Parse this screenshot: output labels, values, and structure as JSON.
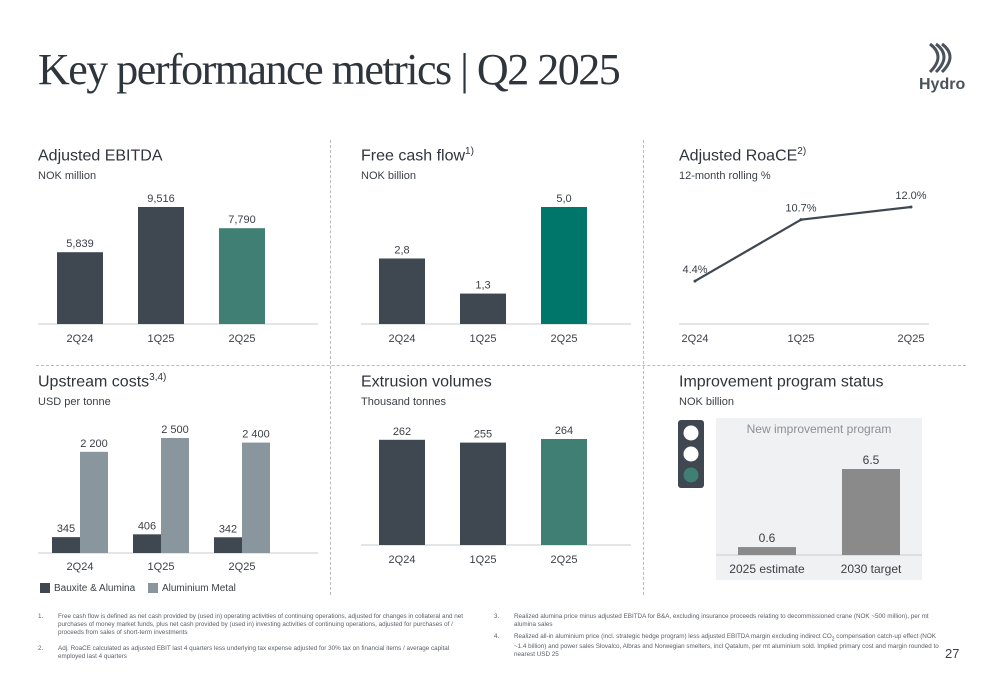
{
  "header": {
    "title": "Key performance metrics | Q2 2025",
    "logo_text": "Hydro"
  },
  "panels": {
    "ebitda": {
      "title": "Adjusted EBITDA",
      "sup": "",
      "subtitle": "NOK million"
    },
    "fcf": {
      "title": "Free cash flow",
      "sup": "1)",
      "subtitle": "NOK billion"
    },
    "roace": {
      "title": "Adjusted RoaCE",
      "sup": "2)",
      "subtitle": "12-month rolling %"
    },
    "upstream": {
      "title": "Upstream costs",
      "sup": "3,4)",
      "subtitle": "USD per tonne"
    },
    "extrusion": {
      "title": "Extrusion volumes",
      "sup": "",
      "subtitle": "Thousand tonnes"
    },
    "improvement": {
      "title": "Improvement program status",
      "sup": "",
      "subtitle": "NOK billion",
      "inner_label": "New improvement program"
    }
  },
  "chart_data": [
    {
      "id": "ebitda",
      "type": "bar",
      "categories": [
        "2Q24",
        "1Q25",
        "2Q25"
      ],
      "values": [
        5839,
        9516,
        7790
      ],
      "labels": [
        "5,839",
        "9,516",
        "7,790"
      ],
      "ylim": [
        0,
        9516
      ],
      "colors": [
        "#3f4750",
        "#3f4750",
        "#3f7f74"
      ]
    },
    {
      "id": "fcf",
      "type": "bar",
      "categories": [
        "2Q24",
        "1Q25",
        "2Q25"
      ],
      "values": [
        2.8,
        1.3,
        5.0
      ],
      "labels": [
        "2,8",
        "1,3",
        "5,0"
      ],
      "ylim": [
        0,
        5.0
      ],
      "colors": [
        "#3f4750",
        "#3f4750",
        "#00756a"
      ]
    },
    {
      "id": "roace",
      "type": "line",
      "categories": [
        "2Q24",
        "1Q25",
        "2Q25"
      ],
      "values": [
        4.4,
        10.7,
        12.0
      ],
      "labels": [
        "4.4%",
        "10.7%",
        "12.0%"
      ],
      "ylim": [
        0,
        12.0
      ],
      "colors": [
        "#3f4750"
      ]
    },
    {
      "id": "upstream",
      "type": "bar",
      "categories": [
        "2Q24",
        "1Q25",
        "2Q25"
      ],
      "series": [
        {
          "name": "Bauxite & Alumina",
          "values": [
            345,
            406,
            342
          ],
          "labels": [
            "345",
            "406",
            "342"
          ],
          "color": "#3f4750"
        },
        {
          "name": "Aluminium Metal",
          "values": [
            2200,
            2500,
            2400
          ],
          "labels": [
            "2 200",
            "2 500",
            "2 400"
          ],
          "color": "#8a969d"
        }
      ],
      "ylim": [
        0,
        2500
      ]
    },
    {
      "id": "extrusion",
      "type": "bar",
      "categories": [
        "2Q24",
        "1Q25",
        "2Q25"
      ],
      "values": [
        262,
        255,
        264
      ],
      "labels": [
        "262",
        "255",
        "264"
      ],
      "ylim": [
        0,
        264
      ],
      "colors": [
        "#3f4750",
        "#3f4750",
        "#3f7f74"
      ]
    },
    {
      "id": "improvement",
      "type": "bar",
      "categories": [
        "2025  estimate",
        "2030  target"
      ],
      "values": [
        0.6,
        6.5
      ],
      "labels": [
        "0.6",
        "6.5"
      ],
      "ylim": [
        0,
        6.5
      ],
      "colors": [
        "#8a8a8a",
        "#8a8a8a"
      ]
    }
  ],
  "traffic_light": {
    "lit_color": "#3f7f74",
    "off_color": "#ffffff",
    "body_color": "#3f4750"
  },
  "footnotes": {
    "n1": "1.",
    "t1": "Free cash flow is defined as net cash provided by (used in) operating activities of continuing operations, adjusted for changes in collateral and net purchases of money market funds, plus net cash provided by (used in) investing activities of continuing operations, adjusted for purchases of / proceeds from sales of short-term investments",
    "n2": "2.",
    "t2": "Adj. RoaCE calculated as adjusted EBIT last 4 quarters less underlying tax expense adjusted for 30% tax on financial items / average capital employed last 4 quarters",
    "n3": "3.",
    "t3": "Realized alumina price minus adjusted EBITDA for B&A, excluding insurance proceeds relating to decommissioned crane (NOK ~500 million), per mt alumina sales",
    "n4": "4.",
    "t4a": "Realized all-in aluminium price (incl. strategic hedge program) less adjusted EBITDA margin excluding indirect CO",
    "t4sub": "2",
    "t4b": " compensation catch-up effect (NOK ~1.4 billion) and power sales Slovalco, Albras and Norwegian smelters, incl Qatalum, per mt aluminium sold. Implied primary cost and margin rounded to nearest USD 25"
  },
  "page_number": "27"
}
